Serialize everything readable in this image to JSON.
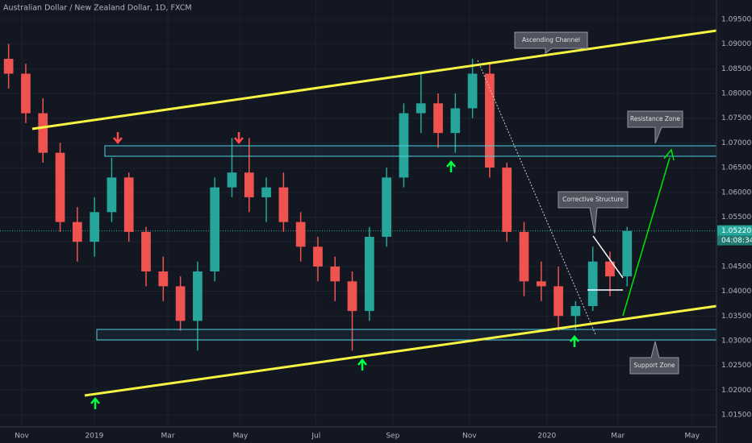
{
  "chart_data": {
    "type": "candlestick",
    "title": "Australian Dollar / New Zealand Dollar, 1D, FXCM",
    "up_color": "#26a69a",
    "down_color": "#ef5350",
    "x": [
      0.5,
      1.5,
      2.5,
      3.5,
      4.5,
      5.5,
      6.5,
      7.5,
      8.5,
      9.5,
      10.5,
      11.5,
      12.5,
      13.5,
      14.5,
      15.5,
      16.5,
      17.5,
      18.5,
      19.5,
      20.5,
      21.5,
      22.5,
      23.5,
      24.5,
      25.5,
      26.5,
      27.5,
      28.5,
      29.5,
      30.5,
      31.5,
      32.5,
      33.5,
      34.5,
      35.5,
      36.5
    ],
    "open": [
      1.087,
      1.084,
      1.076,
      1.068,
      1.054,
      1.05,
      1.056,
      1.063,
      1.052,
      1.044,
      1.041,
      1.034,
      1.044,
      1.061,
      1.064,
      1.059,
      1.061,
      1.054,
      1.049,
      1.045,
      1.042,
      1.036,
      1.051,
      1.063,
      1.076,
      1.078,
      1.072,
      1.077,
      1.084,
      1.065,
      1.052,
      1.042,
      1.041,
      1.035,
      1.037,
      1.046,
      1.043
    ],
    "high": [
      1.09,
      1.086,
      1.079,
      1.07,
      1.057,
      1.059,
      1.067,
      1.064,
      1.053,
      1.047,
      1.043,
      1.046,
      1.063,
      1.071,
      1.071,
      1.063,
      1.064,
      1.056,
      1.051,
      1.047,
      1.044,
      1.053,
      1.065,
      1.078,
      1.084,
      1.08,
      1.08,
      1.087,
      1.086,
      1.066,
      1.054,
      1.046,
      1.045,
      1.038,
      1.049,
      1.048,
      1.053
    ],
    "low": [
      1.081,
      1.074,
      1.066,
      1.052,
      1.046,
      1.047,
      1.054,
      1.05,
      1.041,
      1.038,
      1.032,
      1.028,
      1.042,
      1.059,
      1.056,
      1.054,
      1.052,
      1.046,
      1.042,
      1.038,
      1.028,
      1.034,
      1.049,
      1.061,
      1.072,
      1.069,
      1.068,
      1.075,
      1.063,
      1.05,
      1.039,
      1.038,
      1.032,
      1.032,
      1.036,
      1.039,
      1.041
    ],
    "close": [
      1.084,
      1.076,
      1.068,
      1.054,
      1.05,
      1.056,
      1.063,
      1.052,
      1.044,
      1.041,
      1.034,
      1.044,
      1.061,
      1.064,
      1.059,
      1.061,
      1.054,
      1.049,
      1.045,
      1.042,
      1.036,
      1.051,
      1.063,
      1.076,
      1.078,
      1.072,
      1.077,
      1.084,
      1.065,
      1.052,
      1.042,
      1.041,
      1.035,
      1.037,
      1.046,
      1.043,
      1.0522
    ],
    "xlim": [
      0,
      41.7
    ],
    "xticks": [
      {
        "value": 1.27,
        "label": "Nov"
      },
      {
        "value": 5.49,
        "label": "2019"
      },
      {
        "value": 9.77,
        "label": "Mar"
      },
      {
        "value": 13.99,
        "label": "May"
      },
      {
        "value": 18.4,
        "label": "Jul"
      },
      {
        "value": 22.86,
        "label": "Sep"
      },
      {
        "value": 27.32,
        "label": "Nov"
      },
      {
        "value": 31.83,
        "label": "2020"
      },
      {
        "value": 35.96,
        "label": "Mar"
      },
      {
        "value": 40.28,
        "label": "May"
      }
    ],
    "ylim": [
      1.01256,
      1.0989
    ],
    "yticks": [
      {
        "value": 1.015,
        "label": "1.01500"
      },
      {
        "value": 1.02,
        "label": "1.02000"
      },
      {
        "value": 1.025,
        "label": "1.02500"
      },
      {
        "value": 1.03,
        "label": "1.03000"
      },
      {
        "value": 1.035,
        "label": "1.03500"
      },
      {
        "value": 1.04,
        "label": "1.04000"
      },
      {
        "value": 1.045,
        "label": "1.04500"
      },
      {
        "value": 1.05,
        "label": "1.05000"
      },
      {
        "value": 1.055,
        "label": "1.05500"
      },
      {
        "value": 1.06,
        "label": "1.06000"
      },
      {
        "value": 1.065,
        "label": "1.06500"
      },
      {
        "value": 1.07,
        "label": "1.07000"
      },
      {
        "value": 1.075,
        "label": "1.07500"
      },
      {
        "value": 1.08,
        "label": "1.08000"
      },
      {
        "value": 1.085,
        "label": "1.08500"
      },
      {
        "value": 1.09,
        "label": "1.09000"
      },
      {
        "value": 1.095,
        "label": "1.09500"
      }
    ],
    "last_price": {
      "value": 1.0522,
      "label": "1.05220"
    },
    "countdown": "04:08:34",
    "annotations": [
      "Ascending Channel",
      "Resistance Zone",
      "Corrective Structure",
      "Support Zone"
    ]
  }
}
